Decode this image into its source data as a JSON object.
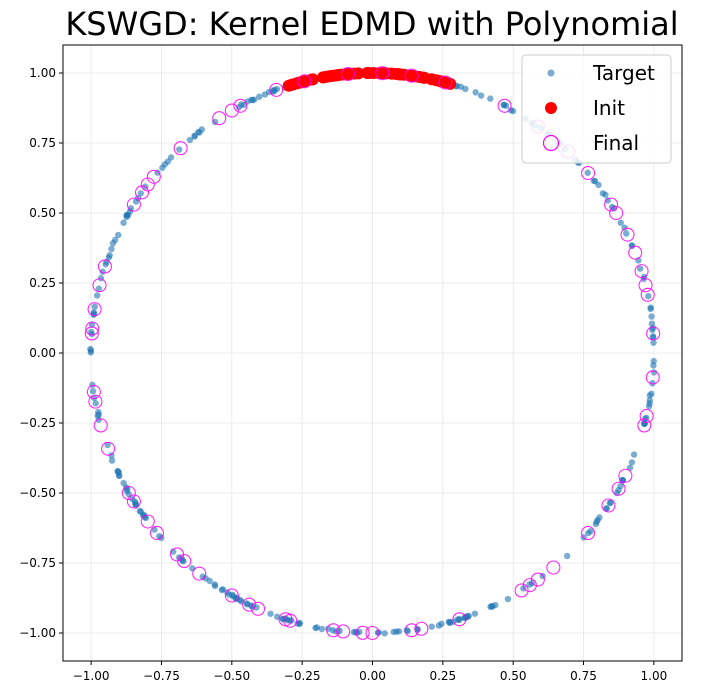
{
  "chart_data": {
    "type": "scatter",
    "title": "KSWGD: Kernel EDMD with Polynomial",
    "xlabel": "",
    "ylabel": "",
    "xlim": [
      -1.1,
      1.1
    ],
    "ylim": [
      -1.1,
      1.1
    ],
    "grid": true,
    "legend_position": "top-right",
    "x_ticks": [
      -1.0,
      -0.75,
      -0.5,
      -0.25,
      0.0,
      0.25,
      0.5,
      0.75,
      1.0
    ],
    "x_tick_labels": [
      "−1.00",
      "−0.75",
      "−0.50",
      "−0.25",
      "0.00",
      "0.25",
      "0.50",
      "0.75",
      "1.00"
    ],
    "y_ticks": [
      -1.0,
      -0.75,
      -0.5,
      -0.25,
      0.0,
      0.25,
      0.5,
      0.75,
      1.0
    ],
    "y_tick_labels": [
      "−1.00",
      "−0.75",
      "−0.50",
      "−0.25",
      "0.00",
      "0.25",
      "0.50",
      "0.75",
      "1.00"
    ],
    "series": [
      {
        "name": "Target",
        "marker": "dot",
        "color": "#1f77b4",
        "description": "points on the unit circle",
        "count": 300
      },
      {
        "name": "Init",
        "marker": "filled-circle",
        "color": "#ff0000",
        "description": "points on the unit circle near the top",
        "angle_range_deg": [
          72,
          108
        ],
        "count": 60
      },
      {
        "name": "Final",
        "marker": "hollow-circle",
        "color": "#ff00ff",
        "angles_deg": [
          4,
          12,
          14,
          17,
          21,
          25,
          30,
          32,
          40,
          46,
          54,
          62,
          75,
          82,
          88,
          95,
          104,
          110,
          118,
          120,
          123,
          133,
          141,
          143,
          145,
          148,
          162,
          166,
          171,
          175,
          176,
          188,
          190,
          195,
          200,
          210,
          212,
          217,
          220,
          226,
          228,
          232,
          240,
          244,
          246,
          252,
          253,
          262,
          264,
          268,
          270,
          278,
          280,
          288,
          302,
          304,
          306,
          310,
          320,
          327,
          331,
          334,
          345,
          347,
          355
        ]
      }
    ]
  }
}
